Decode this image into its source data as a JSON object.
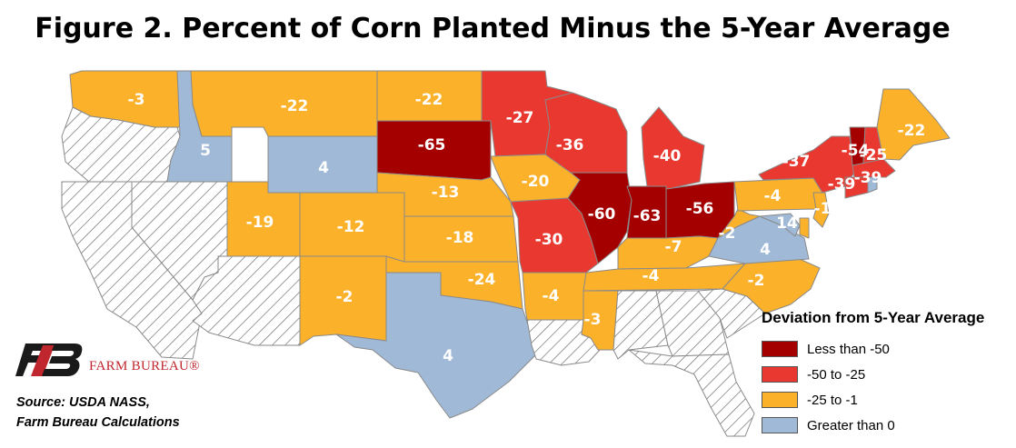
{
  "title": "Figure 2. Percent of Corn Planted Minus the 5-Year Average",
  "colors": {
    "less_than_-50": "#a50000",
    "-50_to_-25": "#e8382f",
    "-25_to_-1": "#fbb12a",
    "greater_than_0": "#9fb9d6",
    "no_data": "hatched-white"
  },
  "legend": {
    "title": "Deviation from 5-Year Average",
    "items": [
      {
        "label": "Less than -50",
        "color": "#a50000"
      },
      {
        "label": "-50 to -25",
        "color": "#e8382f"
      },
      {
        "label": "-25 to -1",
        "color": "#fbb12a"
      },
      {
        "label": "Greater than 0",
        "color": "#9fb9d6"
      }
    ]
  },
  "states": [
    {
      "name": "Washington",
      "value": "-3",
      "category": "-25_to_-1"
    },
    {
      "name": "Oregon",
      "value": "",
      "category": "no_data"
    },
    {
      "name": "California",
      "value": "",
      "category": "no_data"
    },
    {
      "name": "Nevada",
      "value": "",
      "category": "no_data"
    },
    {
      "name": "Idaho",
      "value": "5",
      "category": "greater_than_0"
    },
    {
      "name": "Montana",
      "value": "-22",
      "category": "-25_to_-1"
    },
    {
      "name": "Wyoming",
      "value": "4",
      "category": "greater_than_0"
    },
    {
      "name": "Utah",
      "value": "-19",
      "category": "-25_to_-1"
    },
    {
      "name": "Arizona",
      "value": "",
      "category": "no_data"
    },
    {
      "name": "Colorado",
      "value": "-12",
      "category": "-25_to_-1"
    },
    {
      "name": "New Mexico",
      "value": "-2",
      "category": "-25_to_-1"
    },
    {
      "name": "North Dakota",
      "value": "-22",
      "category": "-25_to_-1"
    },
    {
      "name": "South Dakota",
      "value": "-65",
      "category": "less_than_-50"
    },
    {
      "name": "Nebraska",
      "value": "-13",
      "category": "-25_to_-1"
    },
    {
      "name": "Kansas",
      "value": "-18",
      "category": "-25_to_-1"
    },
    {
      "name": "Oklahoma",
      "value": "-24",
      "category": "-25_to_-1"
    },
    {
      "name": "Texas",
      "value": "4",
      "category": "greater_than_0"
    },
    {
      "name": "Minnesota",
      "value": "-27",
      "category": "-50_to_-25"
    },
    {
      "name": "Iowa",
      "value": "-20",
      "category": "-25_to_-1"
    },
    {
      "name": "Missouri",
      "value": "-30",
      "category": "-50_to_-25"
    },
    {
      "name": "Arkansas",
      "value": "-4",
      "category": "-25_to_-1"
    },
    {
      "name": "Louisiana",
      "value": "",
      "category": "no_data"
    },
    {
      "name": "Wisconsin",
      "value": "-36",
      "category": "-50_to_-25"
    },
    {
      "name": "Illinois",
      "value": "-60",
      "category": "less_than_-50"
    },
    {
      "name": "Michigan",
      "value": "-40",
      "category": "-50_to_-25"
    },
    {
      "name": "Indiana",
      "value": "-63",
      "category": "less_than_-50"
    },
    {
      "name": "Ohio",
      "value": "-56",
      "category": "less_than_-50"
    },
    {
      "name": "Kentucky",
      "value": "-7",
      "category": "-25_to_-1"
    },
    {
      "name": "Tennessee",
      "value": "-4",
      "category": "-25_to_-1"
    },
    {
      "name": "Mississippi",
      "value": "-3",
      "category": "-25_to_-1"
    },
    {
      "name": "Alabama",
      "value": "",
      "category": "no_data"
    },
    {
      "name": "Georgia",
      "value": "",
      "category": "no_data"
    },
    {
      "name": "Florida",
      "value": "",
      "category": "no_data"
    },
    {
      "name": "South Carolina",
      "value": "",
      "category": "no_data"
    },
    {
      "name": "North Carolina",
      "value": "-2",
      "category": "-25_to_-1"
    },
    {
      "name": "Virginia",
      "value": "4",
      "category": "greater_than_0"
    },
    {
      "name": "West Virginia",
      "value": "-2",
      "category": "-25_to_-1"
    },
    {
      "name": "Pennsylvania",
      "value": "-4",
      "category": "-25_to_-1"
    },
    {
      "name": "Maryland",
      "value": "14",
      "category": "greater_than_0"
    },
    {
      "name": "Delaware",
      "value": "",
      "category": "-25_to_-1"
    },
    {
      "name": "New Jersey",
      "value": "-1",
      "category": "-25_to_-1"
    },
    {
      "name": "New York",
      "value": "-37",
      "category": "-50_to_-25"
    },
    {
      "name": "Vermont",
      "value": "-54",
      "category": "less_than_-50"
    },
    {
      "name": "New Hampshire",
      "value": "-25",
      "category": "-50_to_-25"
    },
    {
      "name": "Maine",
      "value": "-22",
      "category": "-25_to_-1"
    },
    {
      "name": "Massachusetts",
      "value": "-39",
      "category": "-50_to_-25"
    },
    {
      "name": "Connecticut",
      "value": "-39",
      "category": "-50_to_-25"
    },
    {
      "name": "Rhode Island",
      "value": "",
      "category": "greater_than_0"
    }
  ],
  "logo": {
    "text": "FARM BUREAU®"
  },
  "source": {
    "line1": "Source: USDA NASS,",
    "line2": "Farm Bureau Calculations"
  }
}
